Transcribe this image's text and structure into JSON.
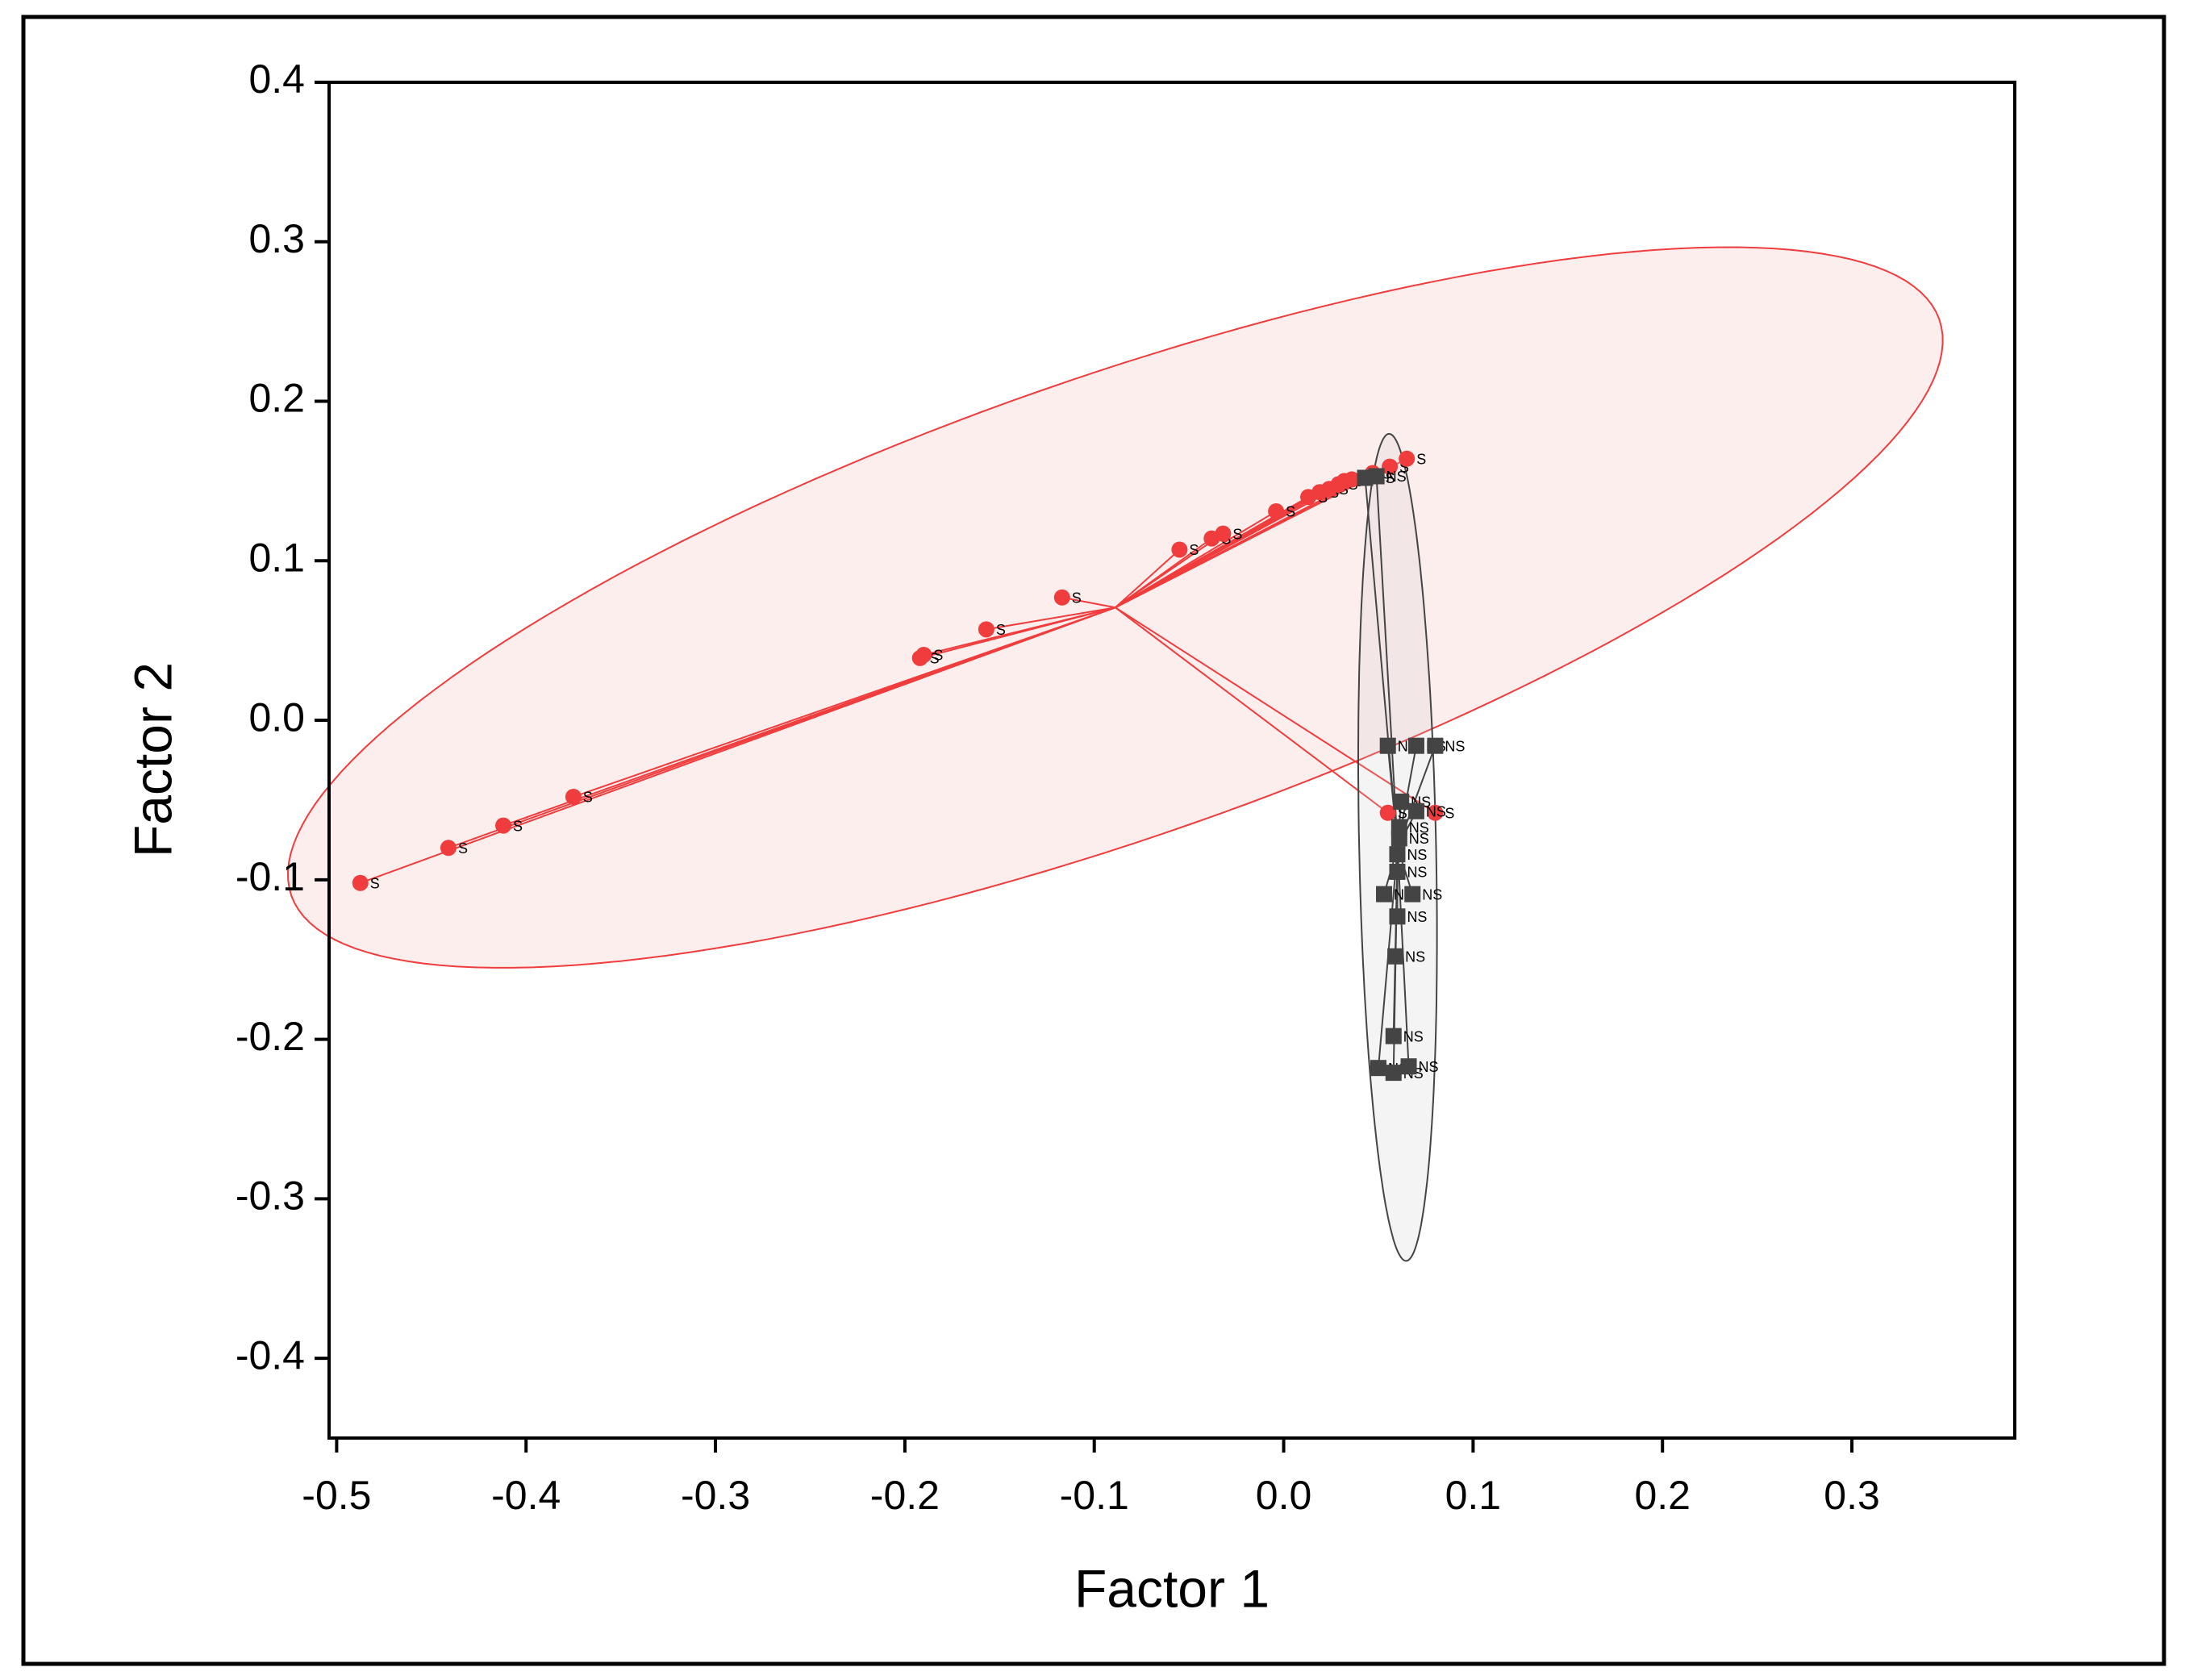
{
  "chart_data": {
    "type": "scatter",
    "x_label": "Factor 1",
    "y_label": "Factor 2",
    "xlim": [
      -0.504,
      0.386
    ],
    "ylim": [
      -0.45,
      0.4
    ],
    "xticks": [
      -0.5,
      -0.4,
      -0.3,
      -0.2,
      -0.1,
      {
        "value": 0,
        "label": "0.0"
      },
      0.1,
      0.2,
      0.3
    ],
    "yticks": [
      -0.4,
      -0.3,
      -0.2,
      -0.1,
      {
        "value": 0,
        "label": "0.0"
      },
      0.1,
      0.2,
      0.3,
      0.4
    ],
    "series": [
      {
        "name": "S",
        "color": "#f03c3c",
        "x": [
          -0.4875,
          -0.441,
          -0.412,
          -0.375,
          -0.192,
          -0.19,
          -0.157,
          -0.117,
          -0.055,
          -0.038,
          -0.032,
          -0.004,
          0.013,
          0.019,
          0.024,
          0.029,
          0.032,
          0.036,
          0.047,
          0.056,
          0.065,
          0.055,
          0.08
        ],
        "values": [
          -0.102,
          -0.08,
          -0.066,
          -0.048,
          0.039,
          0.041,
          0.057,
          0.077,
          0.107,
          0.114,
          0.117,
          0.131,
          0.14,
          0.143,
          0.145,
          0.148,
          0.15,
          0.151,
          0.155,
          0.159,
          0.164,
          -0.058,
          -0.058
        ]
      },
      {
        "name": "NS",
        "color": "#444444",
        "x": [
          0.043,
          0.049,
          0.055,
          0.07,
          0.08,
          0.062,
          0.07,
          0.061,
          0.061,
          0.06,
          0.06,
          0.053,
          0.068,
          0.06,
          0.059,
          0.058,
          0.05,
          0.058,
          0.066
        ],
        "values": [
          0.152,
          0.153,
          -0.016,
          -0.016,
          -0.016,
          -0.051,
          -0.057,
          -0.067,
          -0.074,
          -0.084,
          -0.095,
          -0.109,
          -0.109,
          -0.123,
          -0.148,
          -0.198,
          -0.218,
          -0.221,
          -0.217
        ]
      }
    ]
  }
}
